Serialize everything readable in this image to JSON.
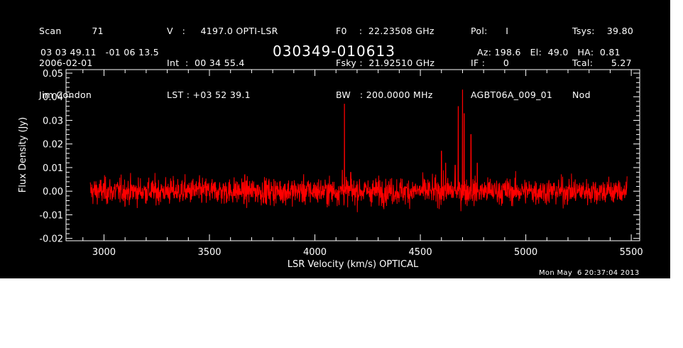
{
  "header": {
    "col1": [
      "Scan          71",
      "2006-02-01",
      "Jim Condon"
    ],
    "col2": [
      "V   :     4197.0 OPTI-LSR",
      "Int  :  00 34 55.4",
      "LST : +03 52 39.1"
    ],
    "col3": [
      "F0    :  22.23508 GHz",
      "Fsky :  21.92510 GHz",
      "BW   : 200.0000 MHz"
    ],
    "col4": [
      "Pol:      I",
      "IF :      0",
      "AGBT06A_009_01"
    ],
    "col5": [
      "Tsys:    39.80",
      "Tcal:      5.27",
      "Nod"
    ],
    "coords": "03 03 49.11   -01 06 13.5",
    "source": "030349-010613",
    "azel": "Az: 198.6   El:  49.0   HA:  0.81",
    "timestamp": "Mon May  6 20:37:04 2013"
  },
  "colors": {
    "background": "#000000",
    "axes": "#ffffff",
    "series": "#ff0000"
  },
  "chart_data": {
    "type": "line",
    "title": "030349-010613",
    "xlabel": "LSR Velocity (km/s) OPTICAL",
    "ylabel": "Flux Density (Jy)",
    "xlim": [
      2820,
      5540
    ],
    "ylim": [
      -0.021,
      0.0515
    ],
    "xticks": [
      3000,
      3500,
      4000,
      4500,
      5000,
      5500
    ],
    "xtick_labels": [
      "3000",
      "3500",
      "4000",
      "4500",
      "5000",
      "5500"
    ],
    "yticks": [
      -0.02,
      -0.01,
      0.0,
      0.01,
      0.02,
      0.03,
      0.04,
      0.05
    ],
    "ytick_labels": [
      "-0.02",
      "-0.01",
      "0.00",
      "0.01",
      "0.02",
      "0.03",
      "0.04",
      "0.05"
    ],
    "grid": false,
    "series": [
      {
        "name": "",
        "x_range": [
          2935,
          5480
        ],
        "noise_rms": 0.0028,
        "baseline_y": 0.0,
        "peaks": [
          {
            "x": 4130,
            "y": 0.009
          },
          {
            "x": 4140,
            "y": 0.037
          },
          {
            "x": 4170,
            "y": 0.008
          },
          {
            "x": 4600,
            "y": 0.017
          },
          {
            "x": 4620,
            "y": 0.012
          },
          {
            "x": 4665,
            "y": 0.011
          },
          {
            "x": 4680,
            "y": 0.036
          },
          {
            "x": 4700,
            "y": 0.043
          },
          {
            "x": 4708,
            "y": 0.033
          },
          {
            "x": 4740,
            "y": 0.024
          },
          {
            "x": 4770,
            "y": 0.012
          }
        ]
      }
    ]
  }
}
